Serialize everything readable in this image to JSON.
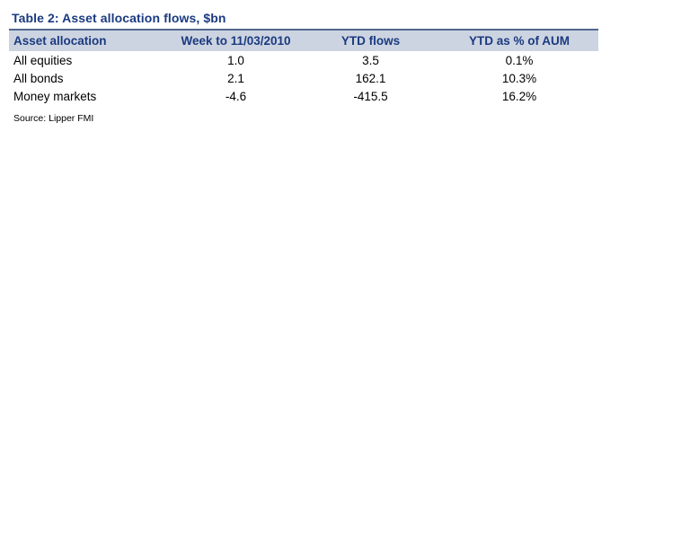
{
  "title": "Table 2: Asset allocation flows, $bn",
  "source": "Source: Lipper FMI",
  "colors": {
    "title_navy": "#1a3a80",
    "rule_blue": "#51688f",
    "header_bg": "#cdd4e1",
    "body_text": "#000000",
    "background": "#ffffff"
  },
  "chart_data": {
    "type": "table",
    "title": "Table 2: Asset allocation flows, $bn",
    "headers": [
      "Asset allocation",
      "Week to 11/03/2010",
      "YTD flows",
      "YTD as % of AUM"
    ],
    "rows": [
      [
        "All equities",
        "1.0",
        "3.5",
        "0.1%"
      ],
      [
        "All bonds",
        "2.1",
        "162.1",
        "10.3%"
      ],
      [
        "Money markets",
        "-4.6",
        "-415.5",
        "16.2%"
      ]
    ],
    "source": "Source: Lipper FMI"
  }
}
